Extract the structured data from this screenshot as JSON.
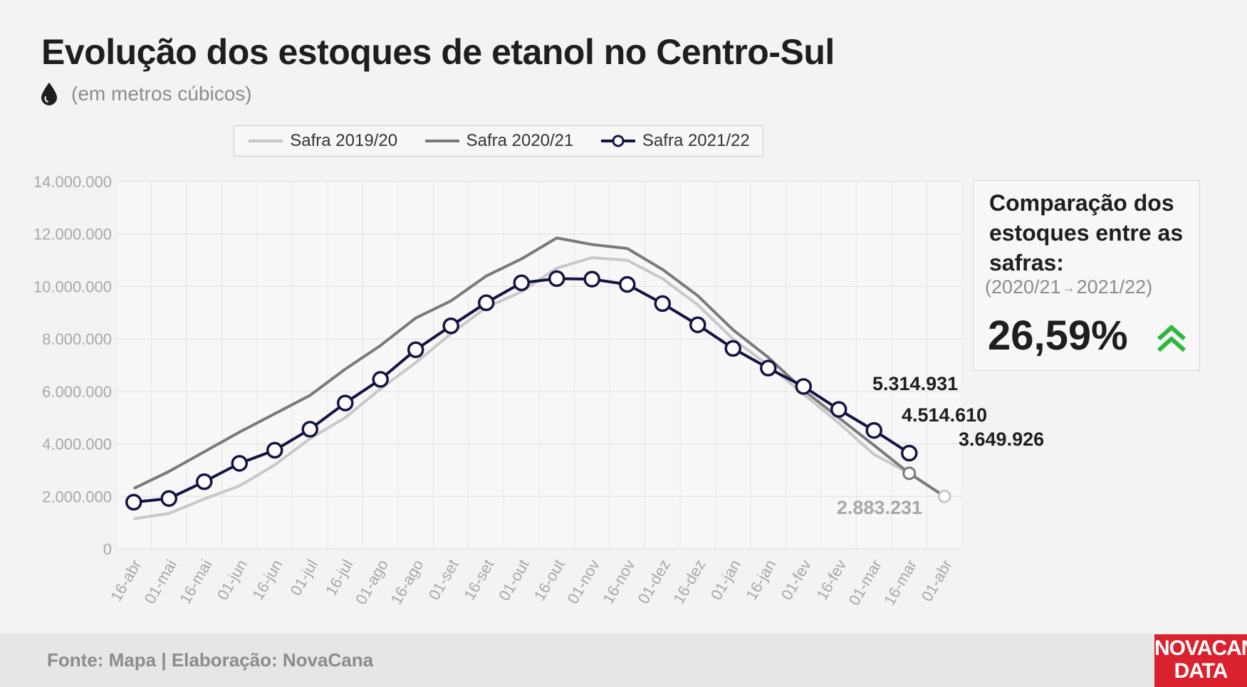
{
  "title": "Evolução dos estoques de etanol no Centro-Sul",
  "subtitle": "(em metros cúbicos)",
  "colors": {
    "s1": "#c8c8c8",
    "s2": "#7a7a7a",
    "s3": "#141444",
    "accent_green": "#2db83d",
    "logo_red": "#d9222e"
  },
  "icon_subtitle": "drop-icon",
  "comparison": {
    "title": "Comparação dos estoques entre as safras:",
    "range_from": "(2020/21",
    "range_arrow": "→",
    "range_to": "2021/22)",
    "value": "26,59%",
    "icon": "double-chevron-up-icon"
  },
  "footer": {
    "source": "Fonte: Mapa | Elaboração: NovaCana"
  },
  "logo": {
    "line1": "NOVACANA",
    "line2": "DATA"
  },
  "chart_data": {
    "type": "line",
    "categories": [
      "16-abr",
      "01-mai",
      "16-mai",
      "01-jun",
      "16-jun",
      "01-jul",
      "16-jul",
      "01-ago",
      "16-ago",
      "01-set",
      "16-set",
      "01-out",
      "16-out",
      "01-nov",
      "16-nov",
      "01-dez",
      "16-dez",
      "01-jan",
      "16-jan",
      "01-fev",
      "16-fev",
      "01-mar",
      "16-mar",
      "01-abr"
    ],
    "ylim": [
      0,
      14000000
    ],
    "yticks": [
      0,
      2000000,
      4000000,
      6000000,
      8000000,
      10000000,
      12000000,
      14000000
    ],
    "ytick_labels": [
      "0",
      "2.000.000",
      "4.000.000",
      "6.000.000",
      "8.000.000",
      "10.000.000",
      "12.000.000",
      "14.000.000"
    ],
    "grid": true,
    "legend_position": "top",
    "series": [
      {
        "name": "Safra 2019/20",
        "values": [
          1150000,
          1350000,
          1900000,
          2400000,
          3200000,
          4200000,
          5000000,
          6100000,
          7100000,
          8200000,
          9200000,
          9800000,
          10700000,
          11100000,
          11000000,
          10300000,
          9300000,
          8000000,
          7000000,
          5900000,
          4800000,
          3600000,
          2883231,
          2000000
        ]
      },
      {
        "name": "Safra 2020/21",
        "values": [
          2300000,
          2950000,
          3700000,
          4450000,
          5150000,
          5850000,
          6850000,
          7750000,
          8800000,
          9450000,
          10400000,
          11050000,
          11850000,
          11600000,
          11450000,
          10650000,
          9650000,
          8350000,
          7300000,
          6050000,
          5000000,
          3950000,
          2883231,
          2000000
        ]
      },
      {
        "name": "Safra 2021/22",
        "values": [
          1780000,
          1920000,
          2560000,
          3260000,
          3760000,
          4560000,
          5560000,
          6460000,
          7590000,
          8500000,
          9380000,
          10140000,
          10300000,
          10280000,
          10080000,
          9350000,
          8540000,
          7640000,
          6890000,
          6190000,
          5314931,
          4514610,
          3649926,
          null
        ]
      }
    ],
    "annotations": [
      {
        "text": "5.314.931"
      },
      {
        "text": "4.514.610"
      },
      {
        "text": "3.649.926"
      },
      {
        "text": "2.883.231"
      }
    ]
  }
}
